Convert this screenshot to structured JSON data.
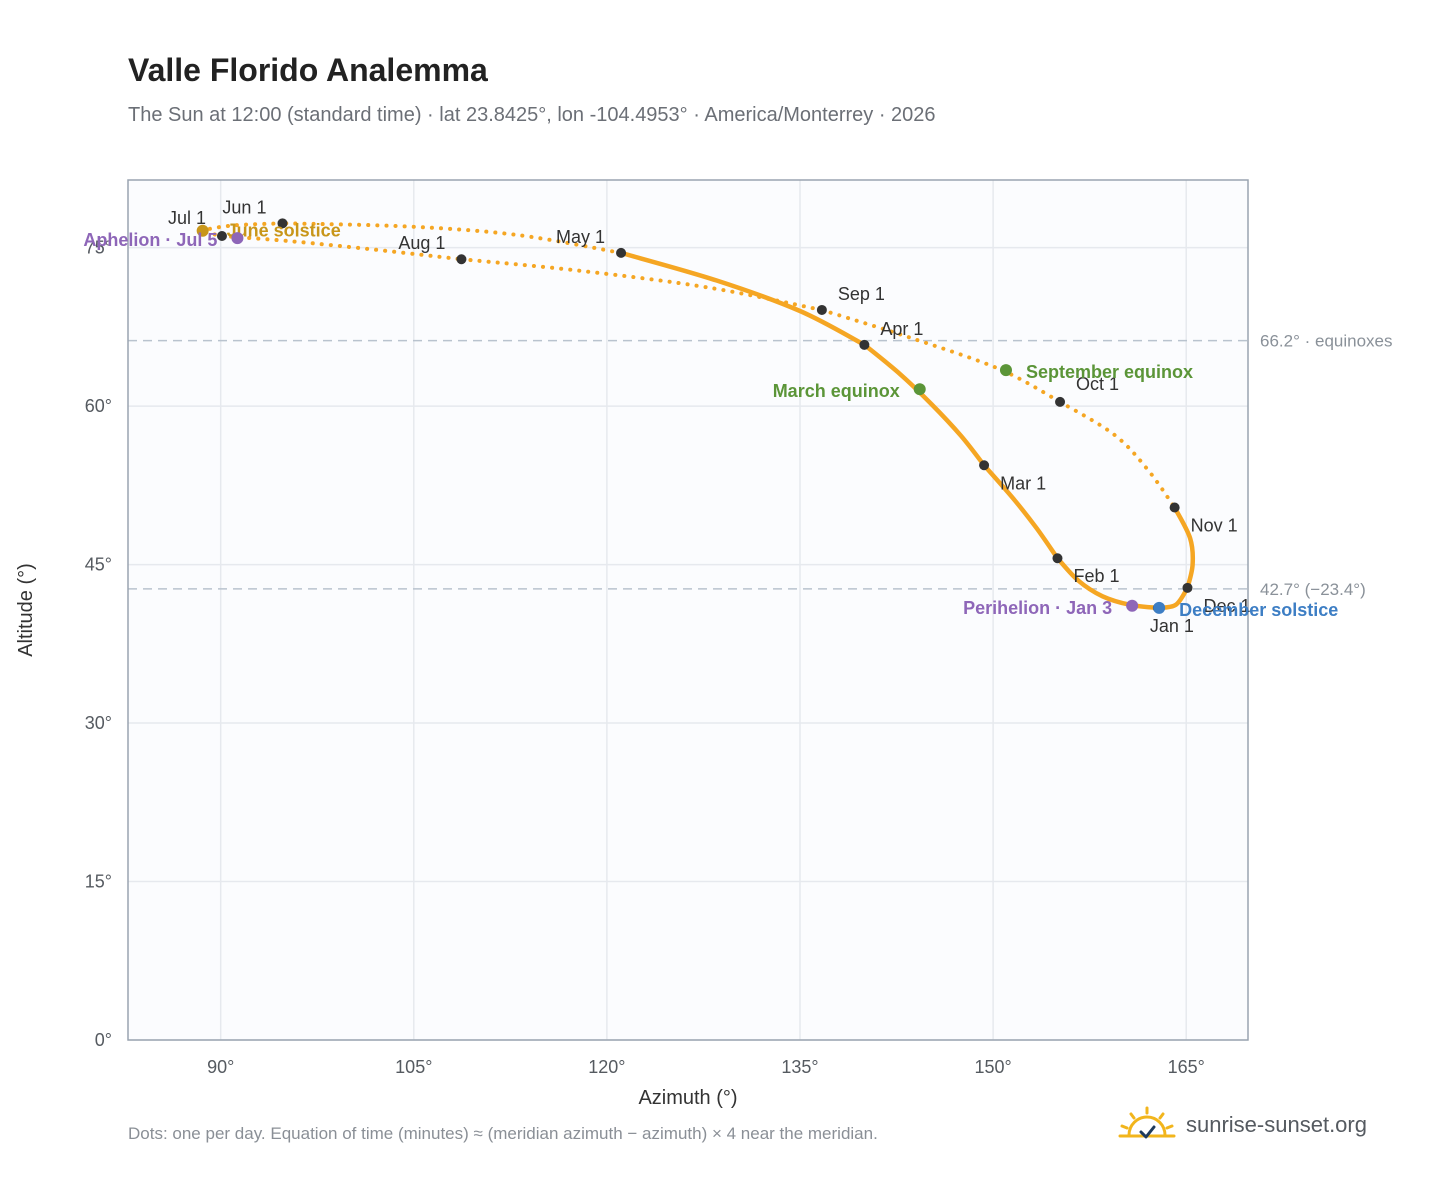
{
  "header": {
    "title": "Valle Florido Analemma",
    "subtitle": "The Sun at 12:00 (standard time) · lat 23.8425°, lon -104.4953° · America/Monterrey · 2026"
  },
  "footer": {
    "note": "Dots: one per day. Equation of time (minutes) ≈ (meridian azimuth − azimuth) × 4 near the meridian.",
    "brand": "sunrise-sunset.org",
    "logo_icon": "sun-check-icon"
  },
  "colors": {
    "analemma": "#f5a623",
    "month_marker": "#333333",
    "solstice_june": "#c8961a",
    "apsis": "#8e66b8",
    "equinox": "#5b9538",
    "solstice_december": "#3d7ec4",
    "reference_line": "#b9c3ce",
    "grid": "#e6e9ee",
    "frame": "#9aa4b0"
  },
  "chart_data": {
    "type": "scatter",
    "xlabel": "Azimuth (°)",
    "ylabel": "Altitude (°)",
    "xlim": [
      82.8,
      169.8
    ],
    "ylim": [
      0,
      81.4
    ],
    "x_ticks": [
      90,
      105,
      120,
      135,
      150,
      165
    ],
    "x_tick_labels": [
      "90°",
      "105°",
      "120°",
      "135°",
      "150°",
      "165°"
    ],
    "y_ticks": [
      0,
      15,
      30,
      45,
      60,
      75
    ],
    "y_tick_labels": [
      "0°",
      "15°",
      "30°",
      "45°",
      "60°",
      "75°"
    ],
    "grid": true,
    "reference_lines": [
      {
        "y": 66.2,
        "label": "66.2° · equinoxes"
      },
      {
        "y": 42.7,
        "label": "42.7° (−23.4°)"
      }
    ],
    "month_markers": [
      {
        "label": "Jan 1",
        "azimuth": 162.8,
        "altitude": 40.9
      },
      {
        "label": "Feb 1",
        "azimuth": 155.0,
        "altitude": 45.6
      },
      {
        "label": "Mar 1",
        "azimuth": 149.3,
        "altitude": 54.4
      },
      {
        "label": "Apr 1",
        "azimuth": 140.0,
        "altitude": 65.8
      },
      {
        "label": "May 1",
        "azimuth": 121.1,
        "altitude": 74.5
      },
      {
        "label": "Jun 1",
        "azimuth": 94.8,
        "altitude": 77.3
      },
      {
        "label": "Jul 1",
        "azimuth": 90.1,
        "altitude": 76.1
      },
      {
        "label": "Aug 1",
        "azimuth": 108.7,
        "altitude": 73.9
      },
      {
        "label": "Sep 1",
        "azimuth": 136.7,
        "altitude": 69.1
      },
      {
        "label": "Oct 1",
        "azimuth": 155.2,
        "altitude": 60.4
      },
      {
        "label": "Nov 1",
        "azimuth": 164.1,
        "altitude": 50.4
      },
      {
        "label": "Dec 1",
        "azimuth": 165.1,
        "altitude": 42.8
      }
    ],
    "events": [
      {
        "label": "June solstice",
        "azimuth": 88.6,
        "altitude": 76.6,
        "kind": "solstice_june"
      },
      {
        "label": "Aphelion · Jul 5",
        "azimuth": 91.3,
        "altitude": 75.9,
        "kind": "apsis"
      },
      {
        "label": "March equinox",
        "azimuth": 144.3,
        "altitude": 61.6,
        "kind": "equinox"
      },
      {
        "label": "September equinox",
        "azimuth": 151.0,
        "altitude": 63.4,
        "kind": "equinox"
      },
      {
        "label": "Perihelion · Jan 3",
        "azimuth": 160.8,
        "altitude": 41.1,
        "kind": "apsis"
      },
      {
        "label": "December solstice",
        "azimuth": 162.9,
        "altitude": 40.9,
        "kind": "solstice_december"
      }
    ],
    "path_knots": [
      {
        "month": "Jan",
        "points": [
          [
            162.8,
            40.9
          ],
          [
            160.6,
            41.2
          ],
          [
            158.5,
            42.0
          ],
          [
            156.6,
            43.5
          ],
          [
            155.0,
            45.6
          ]
        ]
      },
      {
        "month": "Feb",
        "points": [
          [
            155.0,
            45.6
          ],
          [
            153.4,
            48.4
          ],
          [
            151.6,
            51.2
          ],
          [
            149.3,
            54.4
          ]
        ]
      },
      {
        "month": "Mar",
        "points": [
          [
            149.3,
            54.4
          ],
          [
            147.5,
            57.2
          ],
          [
            145.2,
            60.2
          ],
          [
            142.8,
            63.0
          ],
          [
            140.0,
            65.8
          ]
        ]
      },
      {
        "month": "Apr",
        "points": [
          [
            140.0,
            65.8
          ],
          [
            135.0,
            69.0
          ],
          [
            128.5,
            71.9
          ],
          [
            121.1,
            74.5
          ]
        ]
      },
      {
        "month": "May",
        "points": [
          [
            121.1,
            74.5
          ],
          [
            113.0,
            76.2
          ],
          [
            104.5,
            77.0
          ],
          [
            94.8,
            77.3
          ]
        ]
      },
      {
        "month": "Jun",
        "points": [
          [
            94.8,
            77.3
          ],
          [
            91.0,
            77.1
          ],
          [
            88.7,
            76.6
          ],
          [
            90.1,
            76.1
          ]
        ]
      },
      {
        "month": "Jul",
        "points": [
          [
            90.1,
            76.1
          ],
          [
            95.5,
            75.6
          ],
          [
            102.0,
            74.8
          ],
          [
            108.7,
            73.9
          ]
        ]
      },
      {
        "month": "Aug",
        "points": [
          [
            108.7,
            73.9
          ],
          [
            118.0,
            72.8
          ],
          [
            128.0,
            71.2
          ],
          [
            136.7,
            69.1
          ]
        ]
      },
      {
        "month": "Sep",
        "points": [
          [
            136.7,
            69.1
          ],
          [
            143.5,
            66.5
          ],
          [
            150.5,
            63.5
          ],
          [
            155.2,
            60.4
          ]
        ]
      },
      {
        "month": "Oct",
        "points": [
          [
            155.2,
            60.4
          ],
          [
            159.4,
            57.3
          ],
          [
            162.0,
            54.0
          ],
          [
            164.1,
            50.4
          ]
        ]
      },
      {
        "month": "Nov",
        "points": [
          [
            164.1,
            50.4
          ],
          [
            165.3,
            47.5
          ],
          [
            165.5,
            45.0
          ],
          [
            165.1,
            42.8
          ]
        ]
      },
      {
        "month": "Dec",
        "points": [
          [
            165.1,
            42.8
          ],
          [
            164.2,
            41.2
          ],
          [
            162.8,
            40.9
          ]
        ]
      }
    ],
    "dotted_months": [
      "May",
      "Jun",
      "Jul",
      "Aug",
      "Sep",
      "Oct"
    ]
  }
}
